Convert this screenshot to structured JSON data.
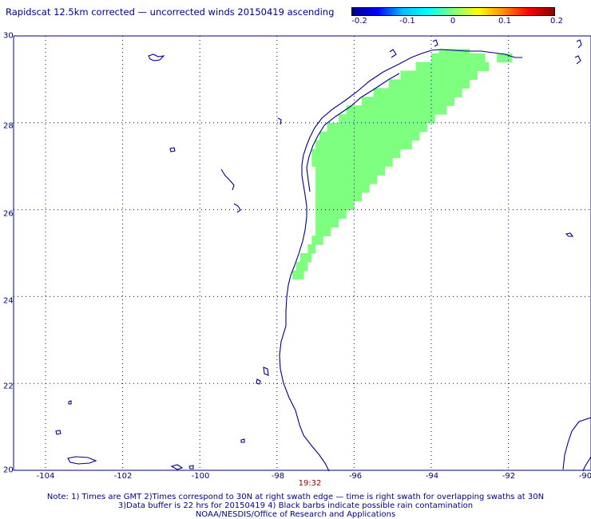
{
  "title": "Rapidscat 12.5km corrected — uncorrected winds 20150419 ascending",
  "colorbar": {
    "labels": [
      "-0.2",
      "-0.1",
      "0",
      "0.1",
      "0.2"
    ],
    "gradient": [
      "#00008b",
      "#0000ff",
      "#00bfff",
      "#00ffff",
      "#7fff7f",
      "#ffff00",
      "#ff8c00",
      "#ff0000",
      "#8b0000"
    ]
  },
  "axes": {
    "x_labels": [
      "-104",
      "-102",
      "-100",
      "-98",
      "-96",
      "-94",
      "-92",
      "-90"
    ],
    "y_labels": [
      "30",
      "28",
      "26",
      "24",
      "22",
      "20"
    ],
    "lon_range": [
      -105,
      -90
    ],
    "lat_range": [
      20,
      30
    ]
  },
  "swath": {
    "value": 0,
    "color": "#7fff7f",
    "rows": [
      [
        29.6,
        -93.8,
        -93.0
      ],
      [
        29.5,
        -94.0,
        -92.6
      ],
      [
        29.5,
        -92.3,
        -91.9
      ],
      [
        29.3,
        -94.4,
        -92.5
      ],
      [
        29.1,
        -94.8,
        -92.8
      ],
      [
        28.9,
        -95.1,
        -93.0
      ],
      [
        28.7,
        -95.5,
        -93.2
      ],
      [
        28.5,
        -95.8,
        -93.4
      ],
      [
        28.3,
        -96.2,
        -93.6
      ],
      [
        28.1,
        -96.4,
        -93.9
      ],
      [
        27.9,
        -96.7,
        -94.1
      ],
      [
        27.7,
        -96.9,
        -94.3
      ],
      [
        27.5,
        -97.0,
        -94.5
      ],
      [
        27.3,
        -97.1,
        -94.8
      ],
      [
        27.1,
        -97.1,
        -95.0
      ],
      [
        26.9,
        -97.0,
        -95.2
      ],
      [
        26.7,
        -97.0,
        -95.4
      ],
      [
        26.5,
        -97.0,
        -95.6
      ],
      [
        26.3,
        -97.0,
        -95.8
      ],
      [
        26.1,
        -97.0,
        -96.0
      ],
      [
        25.9,
        -97.0,
        -96.2
      ],
      [
        25.7,
        -97.0,
        -96.4
      ],
      [
        25.5,
        -97.0,
        -96.6
      ],
      [
        25.3,
        -97.1,
        -96.8
      ],
      [
        25.1,
        -97.2,
        -97.0
      ],
      [
        24.9,
        -97.4,
        -97.1
      ],
      [
        24.7,
        -97.5,
        -97.2
      ],
      [
        24.5,
        -97.6,
        -97.3
      ]
    ]
  },
  "timestamp": "19:32",
  "notes": [
    "Note: 1) Times are GMT 2)Times correspond to 30N at right swath edge — time is right swath for overlapping swaths at 30N",
    "3)Data buffer is 22 hrs for 20150419 4) Black barbs indicate possible rain contamination",
    "NOAA/NESDIS/Office of Research and Applications"
  ]
}
